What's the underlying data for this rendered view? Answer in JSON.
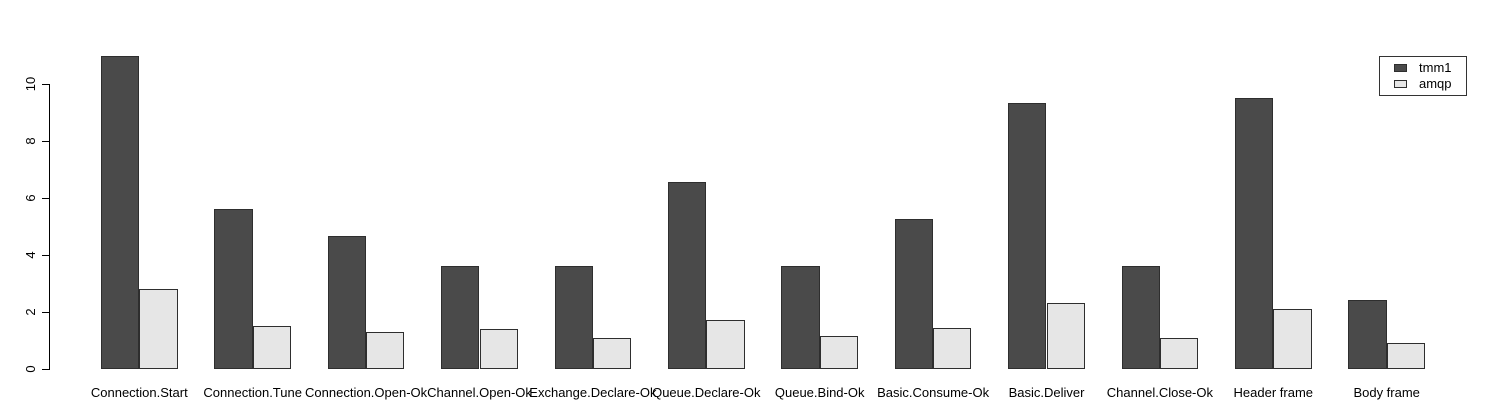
{
  "chart_data": {
    "type": "bar",
    "title": "",
    "xlabel": "",
    "ylabel": "",
    "categories": [
      "Connection.Start",
      "Connection.Tune",
      "Connection.Open-Ok",
      "Channel.Open-Ok",
      "Exchange.Declare-Ok",
      "Queue.Declare-Ok",
      "Queue.Bind-Ok",
      "Basic.Consume-Ok",
      "Basic.Deliver",
      "Channel.Close-Ok",
      "Header frame",
      "Body frame"
    ],
    "series": [
      {
        "name": "tmm1",
        "color": "#4a4a4a",
        "values": [
          10.95,
          5.6,
          4.65,
          3.6,
          3.6,
          6.55,
          3.6,
          5.25,
          9.3,
          3.6,
          9.5,
          2.4
        ]
      },
      {
        "name": "amqp",
        "color": "#e6e6e6",
        "values": [
          2.8,
          1.5,
          1.3,
          1.4,
          1.1,
          1.7,
          1.15,
          1.45,
          2.3,
          1.1,
          2.1,
          0.9
        ]
      }
    ],
    "yticks": [
      0,
      2,
      4,
      6,
      8,
      10
    ],
    "ylim": [
      0,
      11.2
    ],
    "grid": false,
    "legend_position": "top-right",
    "colors": {
      "background": "#ffffff",
      "axis": "#000000",
      "bar_border": "#2e2e2e",
      "tmm1_fill": "#4a4a4a",
      "amqp_fill": "#e6e6e6"
    }
  }
}
